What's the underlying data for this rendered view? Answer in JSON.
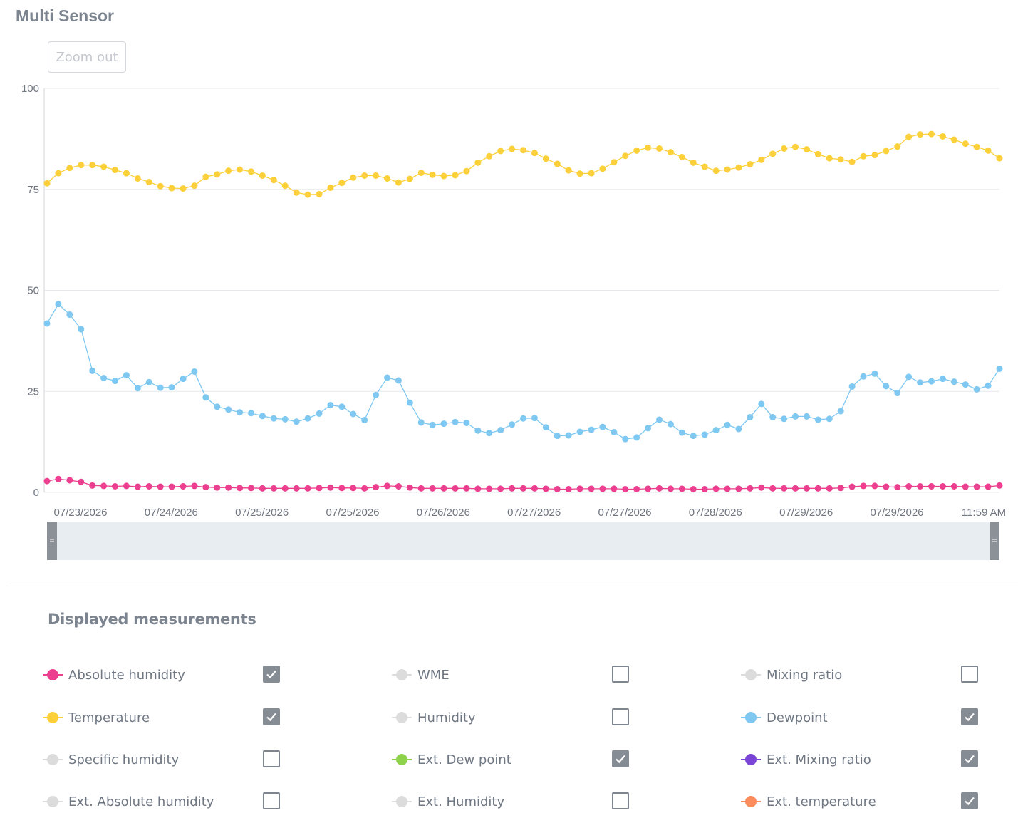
{
  "title": "Multi Sensor",
  "zoom_out_label": "Zoom out",
  "section_title": "Displayed measurements",
  "colors": {
    "grid": "#e6e8eb",
    "axis": "#d0d4d9",
    "navigator_bg": "#e8edf2",
    "navigator_handle": "#8c9198"
  },
  "chart_data": {
    "type": "line",
    "y_ticks": [
      0,
      25,
      50,
      75,
      100
    ],
    "ylim": [
      0,
      100
    ],
    "x_tick_labels": [
      "07/23/2026",
      "07/24/2026",
      "07/25/2026",
      "07/25/2026",
      "07/26/2026",
      "07/27/2026",
      "07/27/2026",
      "07/28/2026",
      "07/29/2026",
      "07/29/2026",
      "11:59 AM"
    ],
    "grid": true,
    "series": [
      {
        "name": "Temperature",
        "color": "#fcd03a",
        "values": [
          76.5,
          79,
          80.3,
          81,
          81,
          80.6,
          79.8,
          79,
          77.7,
          76.8,
          75.8,
          75.3,
          75.2,
          75.9,
          78.1,
          78.7,
          79.6,
          79.9,
          79.4,
          78.4,
          77.3,
          75.9,
          74.2,
          73.7,
          73.8,
          75.4,
          76.6,
          77.9,
          78.4,
          78.4,
          77.7,
          76.7,
          77.6,
          79.1,
          78.6,
          78.3,
          78.5,
          79.5,
          81.6,
          83.2,
          84.5,
          85,
          84.7,
          84,
          82.6,
          81.3,
          79.7,
          78.9,
          79,
          80.1,
          81.7,
          83.3,
          84.6,
          85.3,
          85.1,
          84.2,
          83,
          81.6,
          80.6,
          79.6,
          79.9,
          80.4,
          81.2,
          82.3,
          83.8,
          85.1,
          85.5,
          84.9,
          83.7,
          82.7,
          82.4,
          81.8,
          83.2,
          83.5,
          84.5,
          85.6,
          88,
          88.6,
          88.7,
          88.1,
          87.3,
          86.3,
          85.5,
          84.6,
          82.7
        ]
      },
      {
        "name": "Dewpoint",
        "color": "#7ec8f1",
        "values": [
          41.8,
          46.6,
          44,
          40.4,
          30.1,
          28.3,
          27.6,
          29,
          25.8,
          27.3,
          25.9,
          26,
          28.1,
          29.9,
          23.5,
          21.2,
          20.5,
          19.8,
          19.6,
          18.9,
          18.3,
          18.1,
          17.5,
          18.3,
          19.5,
          21.6,
          21.2,
          19.4,
          17.9,
          24.1,
          28.4,
          27.7,
          22.2,
          17.3,
          16.7,
          17,
          17.4,
          17.2,
          15.3,
          14.7,
          15.4,
          16.8,
          18.3,
          18.4,
          16.1,
          14,
          14.1,
          15,
          15.5,
          16.2,
          14.9,
          13.2,
          13.6,
          15.9,
          18,
          16.9,
          14.8,
          14,
          14.3,
          15.4,
          16.7,
          15.7,
          18.6,
          21.9,
          18.6,
          18.2,
          18.8,
          18.8,
          18,
          18.2,
          20.1,
          26.2,
          28.7,
          29.4,
          26.3,
          24.6,
          28.6,
          27.2,
          27.5,
          28.1,
          27.4,
          26.7,
          25.5,
          26.4,
          30.6
        ]
      },
      {
        "name": "Absolute humidity",
        "color": "#ec3f8f",
        "values": [
          2.8,
          3.3,
          3,
          2.6,
          1.7,
          1.6,
          1.5,
          1.6,
          1.4,
          1.5,
          1.4,
          1.4,
          1.5,
          1.6,
          1.3,
          1.2,
          1.2,
          1.1,
          1.1,
          1,
          1,
          1,
          1,
          1,
          1.1,
          1.2,
          1.1,
          1.1,
          1,
          1.3,
          1.6,
          1.5,
          1.2,
          1,
          1,
          1,
          1,
          1,
          0.9,
          0.9,
          0.9,
          1,
          1,
          1,
          0.9,
          0.8,
          0.8,
          0.9,
          0.9,
          0.9,
          0.9,
          0.8,
          0.8,
          0.9,
          1,
          0.9,
          0.9,
          0.8,
          0.8,
          0.9,
          0.9,
          0.9,
          1,
          1.2,
          1,
          1,
          1,
          1,
          1,
          1,
          1.1,
          1.4,
          1.6,
          1.6,
          1.4,
          1.3,
          1.5,
          1.5,
          1.5,
          1.5,
          1.5,
          1.4,
          1.4,
          1.4,
          1.7
        ]
      }
    ]
  },
  "measurements": [
    {
      "label": "Absolute humidity",
      "color": "#ec3f8f",
      "active": true,
      "checked": true
    },
    {
      "label": "WME",
      "color": "#dcdcdc",
      "active": false,
      "checked": false
    },
    {
      "label": "Mixing ratio",
      "color": "#dcdcdc",
      "active": false,
      "checked": false
    },
    {
      "label": "Temperature",
      "color": "#fcd03a",
      "active": true,
      "checked": true
    },
    {
      "label": "Humidity",
      "color": "#dcdcdc",
      "active": false,
      "checked": false
    },
    {
      "label": "Dewpoint",
      "color": "#7ec8f1",
      "active": true,
      "checked": true
    },
    {
      "label": "Specific humidity",
      "color": "#dcdcdc",
      "active": false,
      "checked": false
    },
    {
      "label": "Ext. Dew point",
      "color": "#8ed14a",
      "active": true,
      "checked": true
    },
    {
      "label": "Ext. Mixing ratio",
      "color": "#7a45d6",
      "active": true,
      "checked": true
    },
    {
      "label": "Ext. Absolute humidity",
      "color": "#dcdcdc",
      "active": false,
      "checked": false
    },
    {
      "label": "Ext. Humidity",
      "color": "#dcdcdc",
      "active": false,
      "checked": false
    },
    {
      "label": "Ext. temperature",
      "color": "#fb8c5c",
      "active": true,
      "checked": true
    }
  ]
}
